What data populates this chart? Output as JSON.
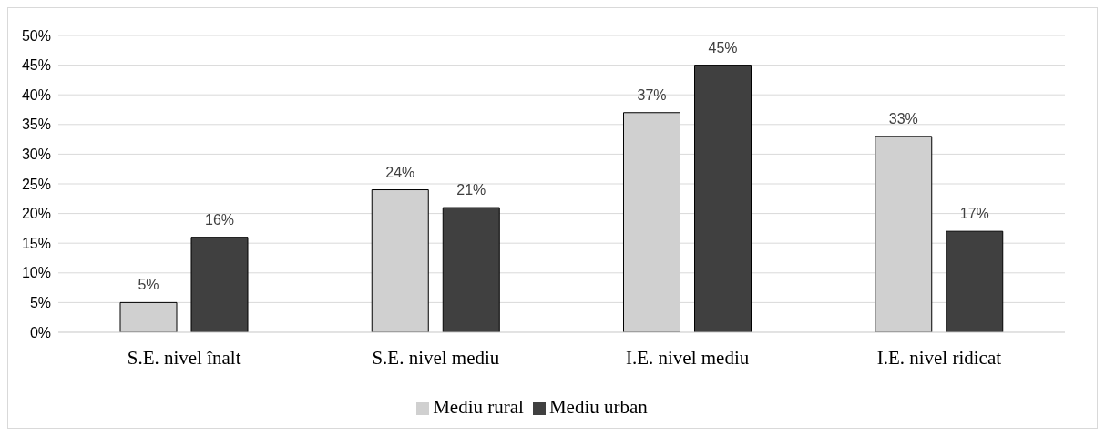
{
  "chart_data": {
    "type": "bar",
    "categories": [
      "S.E. nivel înalt",
      "S.E. nivel mediu",
      "I.E. nivel mediu",
      "I.E. nivel ridicat"
    ],
    "series": [
      {
        "name": "Mediu rural",
        "color": "#d0d0d0",
        "values": [
          5,
          24,
          37,
          33
        ],
        "value_labels": [
          "5%",
          "24%",
          "37%",
          "33%"
        ]
      },
      {
        "name": "Mediu urban",
        "color": "#404040",
        "values": [
          16,
          21,
          45,
          17
        ],
        "value_labels": [
          "16%",
          "21%",
          "45%",
          "17%"
        ]
      }
    ],
    "ylim": [
      0,
      50
    ],
    "yticks": [
      {
        "value": 0,
        "label": "0%"
      },
      {
        "value": 5,
        "label": "5%"
      },
      {
        "value": 10,
        "label": "10%"
      },
      {
        "value": 15,
        "label": "15%"
      },
      {
        "value": 20,
        "label": "20%"
      },
      {
        "value": 25,
        "label": "25%"
      },
      {
        "value": 30,
        "label": "30%"
      },
      {
        "value": 35,
        "label": "35%"
      },
      {
        "value": 40,
        "label": "40%"
      },
      {
        "value": 45,
        "label": "45%"
      },
      {
        "value": 50,
        "label": "50%"
      }
    ],
    "grid": "y",
    "legend": "bottom"
  }
}
